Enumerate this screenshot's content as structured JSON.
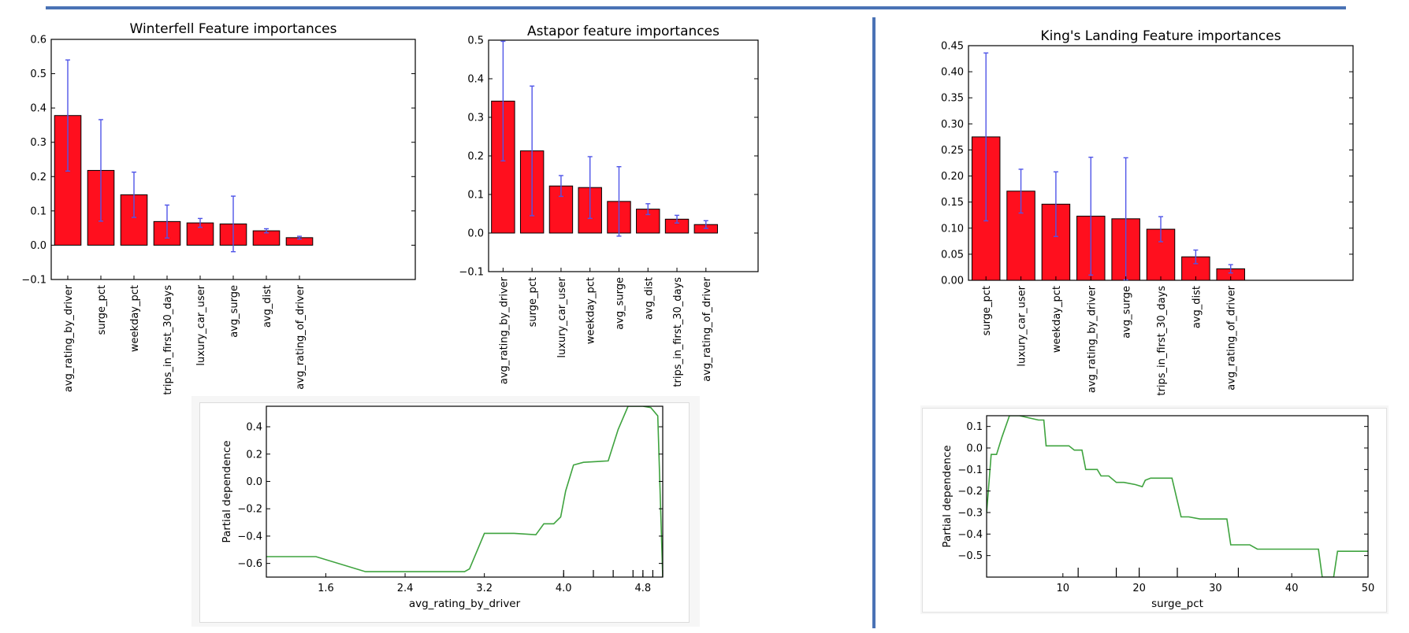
{
  "colors": {
    "separator": "#4a72b5",
    "bar_fill": "#ff0f1e",
    "bar_edge": "#000000",
    "error_bar": "#4f55e8",
    "pd_line": "#3fa33f",
    "panel_bg": "#f6f6f6"
  },
  "chart_data": [
    {
      "id": "winterfell",
      "type": "bar",
      "title": "Winterfell Feature importances",
      "categories": [
        "avg_rating_by_driver",
        "surge_pct",
        "weekday_pct",
        "trips_in_first_30_days",
        "luxury_car_user",
        "avg_surge",
        "avg_dist",
        "avg_rating_of_driver"
      ],
      "values": [
        0.378,
        0.218,
        0.147,
        0.069,
        0.065,
        0.062,
        0.042,
        0.022
      ],
      "error": [
        0.162,
        0.148,
        0.066,
        0.048,
        0.013,
        0.081,
        0.006,
        0.004
      ],
      "ylim": [
        -0.1,
        0.6
      ],
      "yticks": [
        -0.1,
        0.0,
        0.1,
        0.2,
        0.3,
        0.4,
        0.5,
        0.6
      ],
      "ytick_labels": [
        "−0.1",
        "0.0",
        "0.1",
        "0.2",
        "0.3",
        "0.4",
        "0.5",
        "0.6"
      ],
      "xlim": [
        -0.5,
        10.5
      ]
    },
    {
      "id": "astapor",
      "type": "bar",
      "title": "Astapor feature importances",
      "categories": [
        "avg_rating_by_driver",
        "surge_pct",
        "luxury_car_user",
        "weekday_pct",
        "avg_surge",
        "avg_dist",
        "trips_in_first_30_days",
        "avg_rating_of_driver"
      ],
      "values": [
        0.342,
        0.213,
        0.122,
        0.118,
        0.082,
        0.062,
        0.036,
        0.022
      ],
      "error": [
        0.155,
        0.168,
        0.027,
        0.08,
        0.09,
        0.014,
        0.01,
        0.01
      ],
      "ylim": [
        -0.1,
        0.5
      ],
      "yticks": [
        -0.1,
        0.0,
        0.1,
        0.2,
        0.3,
        0.4,
        0.5
      ],
      "ytick_labels": [
        "−0.1",
        "0.0",
        "0.1",
        "0.2",
        "0.3",
        "0.4",
        "0.5"
      ],
      "xlim": [
        -0.5,
        8.8
      ]
    },
    {
      "id": "kingslanding",
      "type": "bar",
      "title": "King's Landing Feature importances",
      "categories": [
        "surge_pct",
        "luxury_car_user",
        "weekday_pct",
        "avg_rating_by_driver",
        "avg_surge",
        "trips_in_first_30_days",
        "avg_dist",
        "avg_rating_of_driver"
      ],
      "values": [
        0.275,
        0.171,
        0.146,
        0.123,
        0.118,
        0.098,
        0.045,
        0.022
      ],
      "error": [
        0.161,
        0.042,
        0.062,
        0.113,
        0.117,
        0.024,
        0.013,
        0.008
      ],
      "ylim": [
        0.0,
        0.45
      ],
      "yticks": [
        0.0,
        0.05,
        0.1,
        0.15,
        0.2,
        0.25,
        0.3,
        0.35,
        0.4,
        0.45
      ],
      "ytick_labels": [
        "0.00",
        "0.05",
        "0.10",
        "0.15",
        "0.20",
        "0.25",
        "0.30",
        "0.35",
        "0.40",
        "0.45"
      ],
      "xlim": [
        -0.5,
        10.5
      ]
    },
    {
      "id": "pd_rating",
      "type": "line",
      "xlabel": "avg_rating_by_driver",
      "ylabel": "Partial dependence",
      "xlim": [
        1.0,
        5.0
      ],
      "ylim": [
        -0.7,
        0.55
      ],
      "xticks": [
        1.6,
        2.4,
        3.2,
        4.0,
        4.8
      ],
      "xtick_labels": [
        "1.6",
        "2.4",
        "3.2",
        "4.0",
        "4.8"
      ],
      "yticks": [
        -0.6,
        -0.4,
        -0.2,
        0.0,
        0.2,
        0.4
      ],
      "ytick_labels": [
        "−0.6",
        "−0.4",
        "−0.2",
        "0.0",
        "0.2",
        "0.4"
      ],
      "deciles": [
        4.0,
        4.3,
        4.5,
        4.7,
        4.8,
        4.9,
        5.0
      ],
      "x": [
        1.0,
        1.5,
        2.0,
        2.5,
        3.0,
        3.05,
        3.2,
        3.5,
        3.72,
        3.8,
        3.9,
        3.97,
        4.02,
        4.1,
        4.2,
        4.45,
        4.55,
        4.65,
        4.8,
        4.88,
        4.95,
        5.0
      ],
      "y": [
        -0.55,
        -0.55,
        -0.66,
        -0.66,
        -0.66,
        -0.64,
        -0.38,
        -0.38,
        -0.39,
        -0.31,
        -0.31,
        -0.26,
        -0.07,
        0.12,
        0.14,
        0.15,
        0.38,
        0.55,
        0.55,
        0.54,
        0.48,
        -0.7
      ]
    },
    {
      "id": "pd_surge",
      "type": "line",
      "xlabel": "surge_pct",
      "ylabel": "Partial dependence",
      "xlim": [
        0,
        50
      ],
      "ylim": [
        -0.6,
        0.15
      ],
      "xticks": [
        10,
        20,
        30,
        40,
        50
      ],
      "xtick_labels": [
        "10",
        "20",
        "30",
        "40",
        "50"
      ],
      "yticks": [
        -0.5,
        -0.4,
        -0.3,
        -0.2,
        -0.1,
        0.0,
        0.1
      ],
      "ytick_labels": [
        "−0.5",
        "−0.4",
        "−0.3",
        "−0.2",
        "−0.1",
        "0.0",
        "0.1"
      ],
      "deciles": [
        12,
        17,
        20,
        25,
        33
      ],
      "x": [
        0,
        0.6,
        1.3,
        2.0,
        3.0,
        4.3,
        6.8,
        7.5,
        7.8,
        9.5,
        10.8,
        11.5,
        12.5,
        13.0,
        14.5,
        15.0,
        16.0,
        17.0,
        18.0,
        19.5,
        20.4,
        20.8,
        21.5,
        23.5,
        24.3,
        25.5,
        26.5,
        28.0,
        29.5,
        31.0,
        31.5,
        32.0,
        34.5,
        35.5,
        40.0,
        43.5,
        44.0,
        45.5,
        46.0,
        50.0
      ],
      "y": [
        -0.3,
        -0.03,
        -0.03,
        0.05,
        0.15,
        0.15,
        0.13,
        0.13,
        0.01,
        0.01,
        0.01,
        -0.01,
        -0.01,
        -0.1,
        -0.1,
        -0.13,
        -0.13,
        -0.16,
        -0.16,
        -0.17,
        -0.18,
        -0.15,
        -0.14,
        -0.14,
        -0.14,
        -0.32,
        -0.32,
        -0.33,
        -0.33,
        -0.33,
        -0.33,
        -0.45,
        -0.45,
        -0.47,
        -0.47,
        -0.47,
        -0.6,
        -0.6,
        -0.48,
        -0.48
      ]
    }
  ]
}
